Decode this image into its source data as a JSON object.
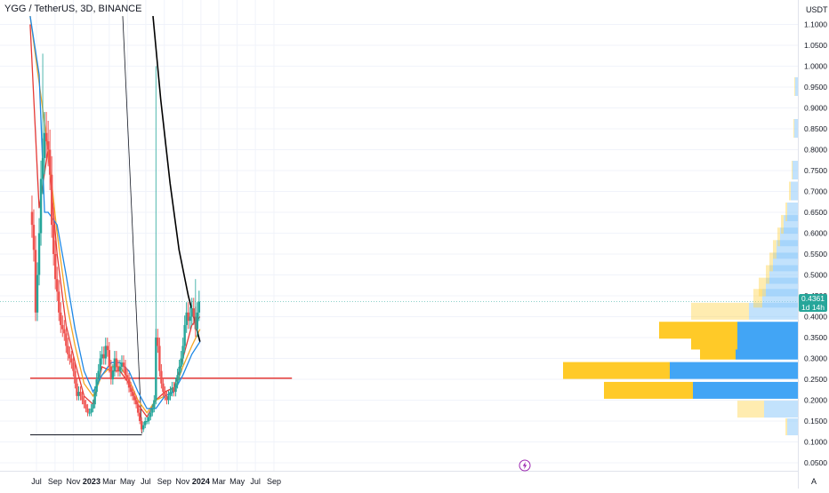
{
  "header": {
    "symbol_title": "YGG / TetherUS, 3D, BINANCE"
  },
  "price_axis": {
    "currency": "USDT",
    "last_price": "0.4361",
    "countdown": "1d 14h",
    "auto_scale_label": "A"
  },
  "colors": {
    "up": "#26a69a",
    "down": "#ef5350",
    "ma_fast": "#e53935",
    "ma_mid": "#f5a623",
    "ma_slow": "#1e88e5",
    "long_line": "#000000",
    "horizontal_level": "#e53935",
    "vp_up": "#90caf9",
    "vp_down": "#ffd54f",
    "vp_value_area_up": "#42a5f5",
    "vp_value_area_down": "#ffca28"
  },
  "icons": {
    "event_marker": "lightning-bolt-icon"
  },
  "chart_data": {
    "type": "candlestick",
    "title": "YGG / TetherUS, 3D, BINANCE",
    "y_axis": {
      "ticks": [
        "1.1000",
        "1.0500",
        "1.0000",
        "0.9500",
        "0.9000",
        "0.8500",
        "0.8000",
        "0.7500",
        "0.7000",
        "0.6500",
        "0.6000",
        "0.5500",
        "0.5000",
        "0.4500",
        "0.4000",
        "0.3500",
        "0.3000",
        "0.2500",
        "0.2000",
        "0.1500",
        "0.1000",
        "0.0500"
      ],
      "range": [
        0.03,
        1.12
      ],
      "unit": "USDT"
    },
    "x_axis": {
      "tick_labels": [
        "Jul",
        "Sep",
        "Nov",
        "2023",
        "Mar",
        "May",
        "Jul",
        "Sep",
        "Nov",
        "2024",
        "Mar",
        "May",
        "Jul",
        "Sep"
      ],
      "tick_dates": [
        "2022-07-01",
        "2022-09-01",
        "2022-11-01",
        "2023-01-01",
        "2023-03-01",
        "2023-05-01",
        "2023-07-01",
        "2023-09-01",
        "2023-11-01",
        "2024-01-01",
        "2024-03-01",
        "2024-05-01",
        "2024-07-01",
        "2024-09-01"
      ]
    },
    "candles_close_approx": [
      [
        "2022-06-16",
        0.62
      ],
      [
        "2022-06-22",
        0.56
      ],
      [
        "2022-06-28",
        0.41
      ],
      [
        "2022-07-04",
        0.5
      ],
      [
        "2022-07-10",
        0.6
      ],
      [
        "2022-07-16",
        0.73
      ],
      [
        "2022-07-22",
        0.78
      ],
      [
        "2022-07-28",
        0.84
      ],
      [
        "2022-08-03",
        0.82
      ],
      [
        "2022-08-09",
        0.8
      ],
      [
        "2022-08-15",
        0.74
      ],
      [
        "2022-08-21",
        0.62
      ],
      [
        "2022-08-27",
        0.55
      ],
      [
        "2022-09-02",
        0.49
      ],
      [
        "2022-09-08",
        0.46
      ],
      [
        "2022-09-14",
        0.41
      ],
      [
        "2022-09-20",
        0.38
      ],
      [
        "2022-09-26",
        0.37
      ],
      [
        "2022-10-02",
        0.36
      ],
      [
        "2022-10-08",
        0.33
      ],
      [
        "2022-10-14",
        0.31
      ],
      [
        "2022-10-20",
        0.3
      ],
      [
        "2022-10-26",
        0.29
      ],
      [
        "2022-11-01",
        0.27
      ],
      [
        "2022-11-07",
        0.24
      ],
      [
        "2022-11-13",
        0.21
      ],
      [
        "2022-11-19",
        0.22
      ],
      [
        "2022-11-25",
        0.21
      ],
      [
        "2022-12-01",
        0.2
      ],
      [
        "2022-12-07",
        0.19
      ],
      [
        "2022-12-13",
        0.18
      ],
      [
        "2022-12-19",
        0.17
      ],
      [
        "2022-12-25",
        0.17
      ],
      [
        "2022-12-31",
        0.18
      ],
      [
        "2023-01-06",
        0.19
      ],
      [
        "2023-01-12",
        0.22
      ],
      [
        "2023-01-18",
        0.25
      ],
      [
        "2023-01-24",
        0.27
      ],
      [
        "2023-01-30",
        0.3
      ],
      [
        "2023-02-05",
        0.31
      ],
      [
        "2023-02-11",
        0.3
      ],
      [
        "2023-02-17",
        0.33
      ],
      [
        "2023-02-23",
        0.32
      ],
      [
        "2023-03-01",
        0.28
      ],
      [
        "2023-03-07",
        0.25
      ],
      [
        "2023-03-13",
        0.27
      ],
      [
        "2023-03-19",
        0.3
      ],
      [
        "2023-03-25",
        0.28
      ],
      [
        "2023-03-31",
        0.27
      ],
      [
        "2023-04-06",
        0.28
      ],
      [
        "2023-04-12",
        0.29
      ],
      [
        "2023-04-18",
        0.28
      ],
      [
        "2023-04-24",
        0.26
      ],
      [
        "2023-04-30",
        0.25
      ],
      [
        "2023-05-06",
        0.23
      ],
      [
        "2023-05-12",
        0.22
      ],
      [
        "2023-05-18",
        0.21
      ],
      [
        "2023-05-24",
        0.2
      ],
      [
        "2023-05-30",
        0.19
      ],
      [
        "2023-06-05",
        0.17
      ],
      [
        "2023-06-11",
        0.15
      ],
      [
        "2023-06-17",
        0.13
      ],
      [
        "2023-06-23",
        0.14
      ],
      [
        "2023-06-29",
        0.15
      ],
      [
        "2023-07-05",
        0.15
      ],
      [
        "2023-07-11",
        0.16
      ],
      [
        "2023-07-17",
        0.17
      ],
      [
        "2023-07-23",
        0.18
      ],
      [
        "2023-07-29",
        0.2
      ],
      [
        "2023-08-04",
        0.35
      ],
      [
        "2023-08-10",
        0.33
      ],
      [
        "2023-08-16",
        0.27
      ],
      [
        "2023-08-22",
        0.24
      ],
      [
        "2023-08-28",
        0.22
      ],
      [
        "2023-09-03",
        0.21
      ],
      [
        "2023-09-09",
        0.2
      ],
      [
        "2023-09-15",
        0.21
      ],
      [
        "2023-09-21",
        0.22
      ],
      [
        "2023-09-27",
        0.23
      ],
      [
        "2023-10-03",
        0.22
      ],
      [
        "2023-10-09",
        0.24
      ],
      [
        "2023-10-15",
        0.26
      ],
      [
        "2023-10-21",
        0.28
      ],
      [
        "2023-10-27",
        0.3
      ],
      [
        "2023-11-02",
        0.33
      ],
      [
        "2023-11-08",
        0.38
      ],
      [
        "2023-11-14",
        0.41
      ],
      [
        "2023-11-20",
        0.39
      ],
      [
        "2023-11-26",
        0.4
      ],
      [
        "2023-12-02",
        0.42
      ],
      [
        "2023-12-08",
        0.4
      ],
      [
        "2023-12-14",
        0.37
      ],
      [
        "2023-12-20",
        0.41
      ],
      [
        "2023-12-26",
        0.4361
      ]
    ],
    "spikes": [
      {
        "date": "2022-07-22",
        "high": 1.03
      },
      {
        "date": "2023-08-04",
        "high": 1.0
      },
      {
        "date": "2023-12-14",
        "high": 0.49
      }
    ],
    "moving_averages": [
      {
        "color": "#e53935",
        "points": [
          [
            "2022-06-10",
            1.1
          ],
          [
            "2022-07-10",
            0.66
          ],
          [
            "2022-08-09",
            0.8
          ],
          [
            "2022-09-08",
            0.55
          ],
          [
            "2022-10-08",
            0.38
          ],
          [
            "2022-11-07",
            0.29
          ],
          [
            "2022-12-07",
            0.21
          ],
          [
            "2023-01-06",
            0.19
          ],
          [
            "2023-02-05",
            0.28
          ],
          [
            "2023-03-07",
            0.27
          ],
          [
            "2023-04-06",
            0.27
          ],
          [
            "2023-05-06",
            0.24
          ],
          [
            "2023-06-05",
            0.19
          ],
          [
            "2023-07-05",
            0.16
          ],
          [
            "2023-08-04",
            0.2
          ],
          [
            "2023-09-03",
            0.22
          ],
          [
            "2023-10-03",
            0.23
          ],
          [
            "2023-11-02",
            0.3
          ],
          [
            "2023-12-02",
            0.38
          ],
          [
            "2023-12-29",
            0.4
          ]
        ]
      },
      {
        "color": "#f5a623",
        "points": [
          [
            "2022-06-10",
            1.12
          ],
          [
            "2022-07-10",
            0.96
          ],
          [
            "2022-08-09",
            0.8
          ],
          [
            "2022-09-08",
            0.6
          ],
          [
            "2022-10-08",
            0.44
          ],
          [
            "2022-11-07",
            0.33
          ],
          [
            "2022-12-07",
            0.24
          ],
          [
            "2023-01-06",
            0.21
          ],
          [
            "2023-02-05",
            0.26
          ],
          [
            "2023-03-07",
            0.28
          ],
          [
            "2023-04-06",
            0.28
          ],
          [
            "2023-05-06",
            0.25
          ],
          [
            "2023-06-05",
            0.2
          ],
          [
            "2023-07-05",
            0.17
          ],
          [
            "2023-08-04",
            0.2
          ],
          [
            "2023-09-03",
            0.21
          ],
          [
            "2023-10-03",
            0.22
          ],
          [
            "2023-11-02",
            0.28
          ],
          [
            "2023-12-02",
            0.33
          ],
          [
            "2023-12-29",
            0.37
          ]
        ]
      },
      {
        "color": "#1e88e5",
        "points": [
          [
            "2022-06-10",
            1.12
          ],
          [
            "2022-07-10",
            0.98
          ],
          [
            "2022-07-28",
            0.65
          ],
          [
            "2022-08-09",
            0.65
          ],
          [
            "2022-09-08",
            0.62
          ],
          [
            "2022-10-08",
            0.5
          ],
          [
            "2022-11-07",
            0.37
          ],
          [
            "2022-12-07",
            0.27
          ],
          [
            "2023-01-06",
            0.22
          ],
          [
            "2023-02-05",
            0.26
          ],
          [
            "2023-03-07",
            0.29
          ],
          [
            "2023-04-06",
            0.29
          ],
          [
            "2023-05-06",
            0.27
          ],
          [
            "2023-06-05",
            0.22
          ],
          [
            "2023-07-05",
            0.18
          ],
          [
            "2023-08-04",
            0.18
          ],
          [
            "2023-09-03",
            0.21
          ],
          [
            "2023-10-03",
            0.22
          ],
          [
            "2023-11-02",
            0.26
          ],
          [
            "2023-12-02",
            0.31
          ],
          [
            "2023-12-29",
            0.34
          ]
        ]
      }
    ],
    "long_ma": {
      "color": "#000000",
      "points": [
        [
          "2023-07-25",
          1.12
        ],
        [
          "2023-08-20",
          0.92
        ],
        [
          "2023-09-20",
          0.72
        ],
        [
          "2023-10-20",
          0.56
        ],
        [
          "2023-11-20",
          0.45
        ],
        [
          "2023-12-29",
          0.34
        ]
      ]
    },
    "trend_line": {
      "color": "#131722",
      "points": [
        [
          "2023-04-15",
          1.12
        ],
        [
          "2023-06-18",
          0.12
        ]
      ]
    },
    "horizontal_segments": [
      {
        "price": 0.117,
        "from": "2022-06-10",
        "to": "2023-06-18",
        "color": "#131722"
      },
      {
        "price": 0.2527,
        "from": "2022-06-10",
        "to": "2024-10-31",
        "color": "#e53935"
      }
    ],
    "volume_profile": [
      {
        "price": 0.135,
        "up": 12,
        "down": 2
      },
      {
        "price": 0.1775,
        "up": 38,
        "down": 30
      },
      {
        "price": 0.2225,
        "up": 118,
        "down": 100
      },
      {
        "price": 0.27,
        "up": 144,
        "down": 120
      },
      {
        "price": 0.3165,
        "up": 70,
        "down": 40
      },
      {
        "price": 0.3405,
        "up": 68,
        "down": 52
      },
      {
        "price": 0.3665,
        "up": 68,
        "down": 88
      },
      {
        "price": 0.412,
        "up": 55,
        "down": 65
      },
      {
        "price": 0.443,
        "up": 40,
        "down": 10
      },
      {
        "price": 0.47,
        "up": 36,
        "down": 8
      },
      {
        "price": 0.5,
        "up": 32,
        "down": 4
      },
      {
        "price": 0.53,
        "up": 28,
        "down": 4
      },
      {
        "price": 0.56,
        "up": 24,
        "down": 4
      },
      {
        "price": 0.59,
        "up": 20,
        "down": 3
      },
      {
        "price": 0.62,
        "up": 16,
        "down": 3
      },
      {
        "price": 0.65,
        "up": 12,
        "down": 2
      },
      {
        "price": 0.7,
        "up": 8,
        "down": 2
      },
      {
        "price": 0.75,
        "up": 6,
        "down": 1
      },
      {
        "price": 0.85,
        "up": 4,
        "down": 1
      },
      {
        "price": 0.95,
        "up": 3,
        "down": 1
      }
    ],
    "grid": true,
    "legend": "none"
  }
}
